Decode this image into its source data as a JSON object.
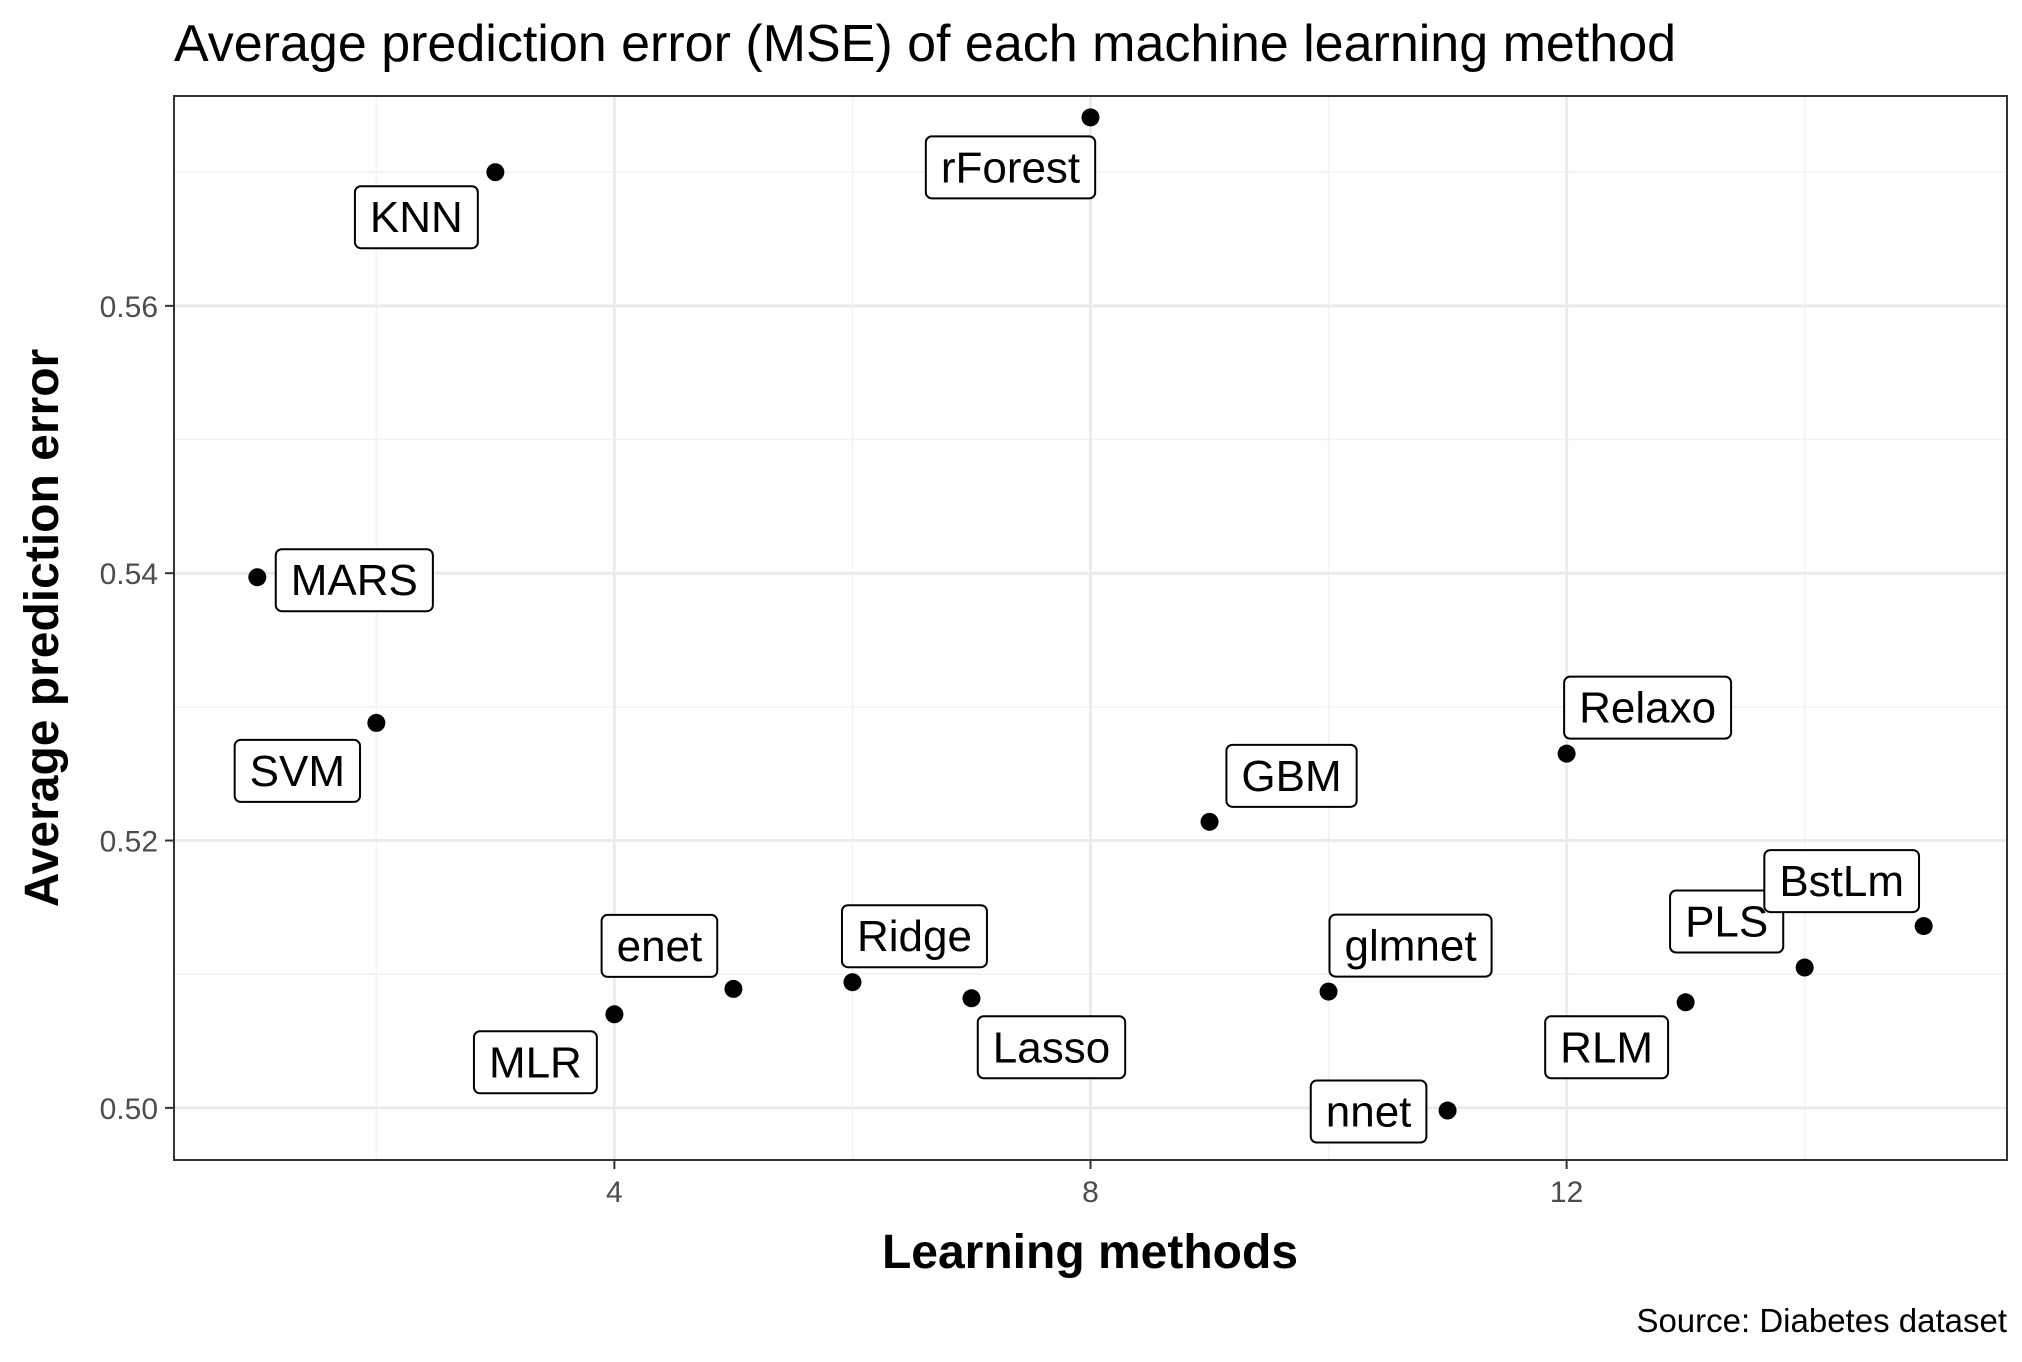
{
  "chart_data": {
    "type": "scatter",
    "title": "Average prediction error (MSE) of each machine learning method",
    "xlabel": "Learning methods",
    "ylabel": "Average prediction error",
    "caption": "Source: Diabetes dataset",
    "xlim": [
      0.3,
      15.7
    ],
    "ylim": [
      0.4961,
      0.5757
    ],
    "x_ticks": [
      4,
      8,
      12
    ],
    "x_tick_labels": [
      "4",
      "8",
      "12"
    ],
    "y_ticks": [
      0.5,
      0.52,
      0.54,
      0.56
    ],
    "y_tick_labels": [
      "0.50",
      "0.52",
      "0.54",
      "0.56"
    ],
    "grid": true,
    "legend": "none",
    "point_color": "#000000",
    "points": [
      {
        "x": 1,
        "y": 0.5397,
        "label": "MARS"
      },
      {
        "x": 2,
        "y": 0.5288,
        "label": "SVM"
      },
      {
        "x": 3,
        "y": 0.57,
        "label": "KNN"
      },
      {
        "x": 4,
        "y": 0.507,
        "label": "MLR"
      },
      {
        "x": 5,
        "y": 0.5089,
        "label": "enet"
      },
      {
        "x": 6,
        "y": 0.5094,
        "label": "Ridge"
      },
      {
        "x": 7,
        "y": 0.5082,
        "label": "Lasso"
      },
      {
        "x": 8,
        "y": 0.5741,
        "label": "rForest"
      },
      {
        "x": 9,
        "y": 0.5214,
        "label": "GBM"
      },
      {
        "x": 10,
        "y": 0.5087,
        "label": "glmnet"
      },
      {
        "x": 11,
        "y": 0.4998,
        "label": "nnet"
      },
      {
        "x": 12,
        "y": 0.5265,
        "label": "Relaxo"
      },
      {
        "x": 13,
        "y": 0.5079,
        "label": "RLM"
      },
      {
        "x": 14,
        "y": 0.5105,
        "label": "PLS"
      },
      {
        "x": 15,
        "y": 0.5136,
        "label": "BstLm"
      }
    ]
  }
}
